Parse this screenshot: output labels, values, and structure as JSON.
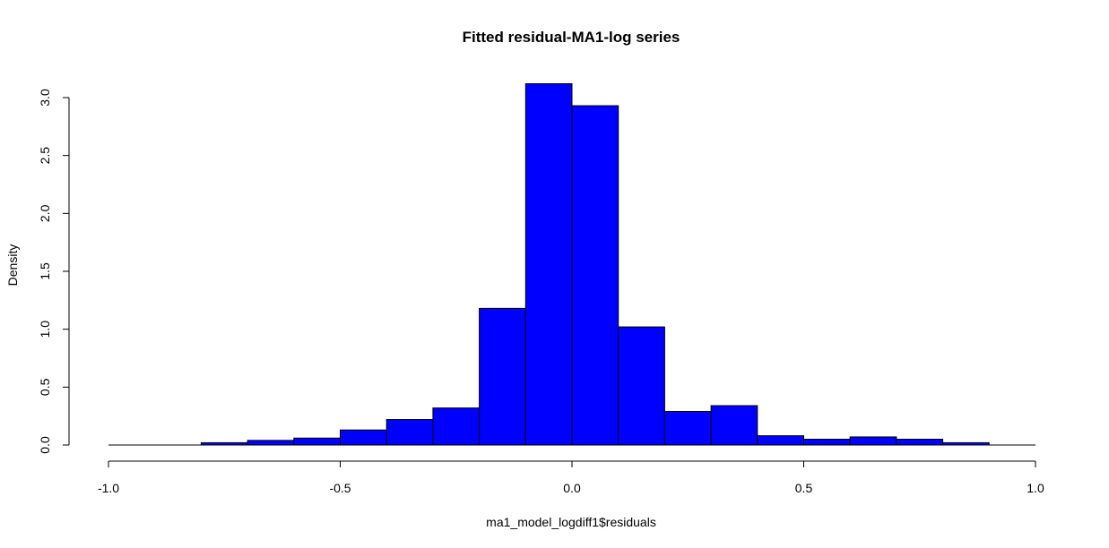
{
  "chart_data": {
    "type": "bar",
    "title": "Fitted residual-MA1-log series",
    "xlabel": "ma1_model_logdiff1$residuals",
    "ylabel": "Density",
    "bar_color": "#0000FF",
    "border_color": "#000000",
    "xlim": [
      -1.0,
      1.0
    ],
    "ylim": [
      0,
      3.0
    ],
    "x_ticks": [
      {
        "value": -1.0,
        "label": "-1.0"
      },
      {
        "value": -0.5,
        "label": "-0.5"
      },
      {
        "value": 0.0,
        "label": "0.0"
      },
      {
        "value": 0.5,
        "label": "0.5"
      },
      {
        "value": 1.0,
        "label": "1.0"
      }
    ],
    "y_ticks": [
      {
        "value": 0.0,
        "label": "0.0"
      },
      {
        "value": 0.5,
        "label": "0.5"
      },
      {
        "value": 1.0,
        "label": "1.0"
      },
      {
        "value": 1.5,
        "label": "1.5"
      },
      {
        "value": 2.0,
        "label": "2.0"
      },
      {
        "value": 2.5,
        "label": "2.5"
      },
      {
        "value": 3.0,
        "label": "3.0"
      }
    ],
    "bins": [
      {
        "start": -1.0,
        "end": -0.9,
        "density": 0.0
      },
      {
        "start": -0.9,
        "end": -0.8,
        "density": 0.0
      },
      {
        "start": -0.8,
        "end": -0.7,
        "density": 0.02
      },
      {
        "start": -0.7,
        "end": -0.6,
        "density": 0.04
      },
      {
        "start": -0.6,
        "end": -0.5,
        "density": 0.06
      },
      {
        "start": -0.5,
        "end": -0.4,
        "density": 0.13
      },
      {
        "start": -0.4,
        "end": -0.3,
        "density": 0.22
      },
      {
        "start": -0.3,
        "end": -0.2,
        "density": 0.32
      },
      {
        "start": -0.2,
        "end": -0.1,
        "density": 1.18
      },
      {
        "start": -0.1,
        "end": 0.0,
        "density": 3.12
      },
      {
        "start": 0.0,
        "end": 0.1,
        "density": 2.93
      },
      {
        "start": 0.1,
        "end": 0.2,
        "density": 1.02
      },
      {
        "start": 0.2,
        "end": 0.3,
        "density": 0.29
      },
      {
        "start": 0.3,
        "end": 0.4,
        "density": 0.34
      },
      {
        "start": 0.4,
        "end": 0.5,
        "density": 0.08
      },
      {
        "start": 0.5,
        "end": 0.6,
        "density": 0.05
      },
      {
        "start": 0.6,
        "end": 0.7,
        "density": 0.07
      },
      {
        "start": 0.7,
        "end": 0.8,
        "density": 0.05
      },
      {
        "start": 0.8,
        "end": 0.9,
        "density": 0.02
      },
      {
        "start": 0.9,
        "end": 1.0,
        "density": 0.0
      }
    ]
  }
}
